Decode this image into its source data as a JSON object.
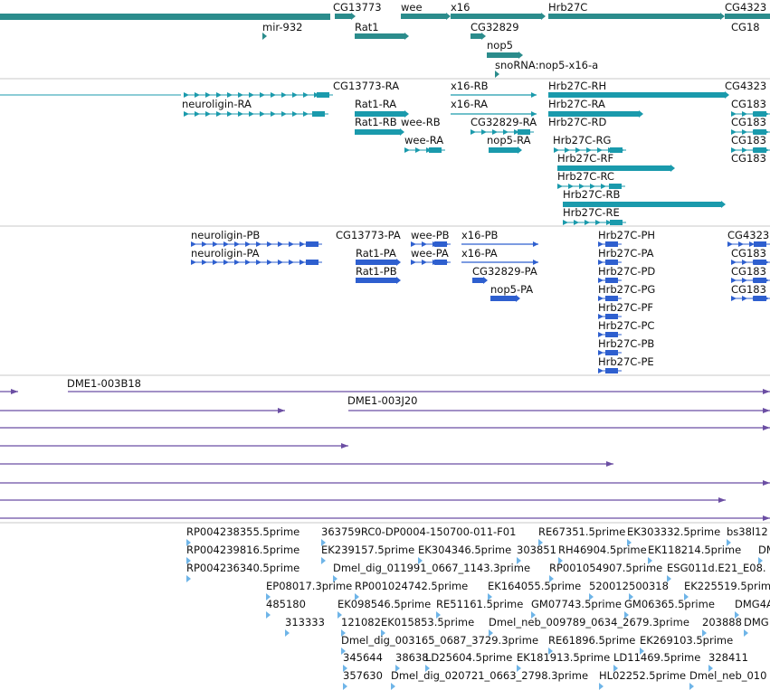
{
  "colors": {
    "gene": "#2b8c8c",
    "transcript": "#1a9aac",
    "protein": "#2e5fcf",
    "clone": "#6b4ea3",
    "est": "#6fb5e8",
    "divider": "#c8c8c8"
  },
  "tracks": {
    "genes": {
      "features": [
        {
          "label": "CG13773"
        },
        {
          "label": "wee"
        },
        {
          "label": "x16"
        },
        {
          "label": "Hrb27C"
        },
        {
          "label": "CG4323"
        },
        {
          "label": "mir-932"
        },
        {
          "label": "Rat1"
        },
        {
          "label": "CG32829"
        },
        {
          "label": "CG18"
        },
        {
          "label": "nop5"
        },
        {
          "label": "snoRNA:nop5-x16-a"
        }
      ]
    },
    "transcripts": {
      "features": [
        {
          "label": "CG13773-RA"
        },
        {
          "label": "x16-RB"
        },
        {
          "label": "Hrb27C-RH"
        },
        {
          "label": "CG4323"
        },
        {
          "label": "neuroligin-RA"
        },
        {
          "label": "Rat1-RA"
        },
        {
          "label": "x16-RA"
        },
        {
          "label": "Hrb27C-RA"
        },
        {
          "label": "CG183"
        },
        {
          "label": "Rat1-RB"
        },
        {
          "label": "wee-RB"
        },
        {
          "label": "CG32829-RA"
        },
        {
          "label": "Hrb27C-RD"
        },
        {
          "label": "CG183"
        },
        {
          "label": "wee-RA"
        },
        {
          "label": "nop5-RA"
        },
        {
          "label": "Hrb27C-RG"
        },
        {
          "label": "CG183"
        },
        {
          "label": "Hrb27C-RF"
        },
        {
          "label": "CG183"
        },
        {
          "label": "Hrb27C-RC"
        },
        {
          "label": "Hrb27C-RB"
        },
        {
          "label": "Hrb27C-RE"
        }
      ]
    },
    "proteins": {
      "features": [
        {
          "label": "neuroligin-PB"
        },
        {
          "label": "CG13773-PA"
        },
        {
          "label": "wee-PB"
        },
        {
          "label": "x16-PB"
        },
        {
          "label": "Hrb27C-PH"
        },
        {
          "label": "CG4323"
        },
        {
          "label": "neuroligin-PA"
        },
        {
          "label": "Rat1-PA"
        },
        {
          "label": "wee-PA"
        },
        {
          "label": "x16-PA"
        },
        {
          "label": "Hrb27C-PA"
        },
        {
          "label": "CG183"
        },
        {
          "label": "Rat1-PB"
        },
        {
          "label": "CG32829-PA"
        },
        {
          "label": "Hrb27C-PD"
        },
        {
          "label": "CG183"
        },
        {
          "label": "nop5-PA"
        },
        {
          "label": "Hrb27C-PG"
        },
        {
          "label": "CG183"
        },
        {
          "label": "Hrb27C-PF"
        },
        {
          "label": "Hrb27C-PC"
        },
        {
          "label": "Hrb27C-PB"
        },
        {
          "label": "Hrb27C-PE"
        }
      ]
    },
    "clones": {
      "features": [
        {
          "label": "DME1-003B18"
        },
        {
          "label": "DME1-003J20"
        }
      ]
    },
    "ests": {
      "features": [
        {
          "label": "RP004238355.5prime"
        },
        {
          "label": "363759RC0-DP0004-150700-011-F01"
        },
        {
          "label": "RE67351.5prime"
        },
        {
          "label": "EK303332.5prime"
        },
        {
          "label": "bs38l12"
        },
        {
          "label": "RP004239816.5prime"
        },
        {
          "label": "EK239157.5prime"
        },
        {
          "label": "EK304346.5prime"
        },
        {
          "label": "303851"
        },
        {
          "label": "RH46904.5prime"
        },
        {
          "label": "EK118214.5prime"
        },
        {
          "label": "DM"
        },
        {
          "label": "RP004236340.5prime"
        },
        {
          "label": "Dmel_dig_011991_0667_1143.3prime"
        },
        {
          "label": "RP001054907.5prime"
        },
        {
          "label": "ESG011d.E21_E08."
        },
        {
          "label": "EP08017.3prime"
        },
        {
          "label": "RP001024742.5prime"
        },
        {
          "label": "EK164055.5prime"
        },
        {
          "label": "520012"
        },
        {
          "label": "500318"
        },
        {
          "label": "EK225519.5prim"
        },
        {
          "label": "485180"
        },
        {
          "label": "EK098546.5prime"
        },
        {
          "label": "RE51161.5prime"
        },
        {
          "label": "GM07743.5prime"
        },
        {
          "label": "GM06365.5prime"
        },
        {
          "label": "DMG4A"
        },
        {
          "label": "313333"
        },
        {
          "label": "121082"
        },
        {
          "label": "EK015853.5prime"
        },
        {
          "label": "Dmel_neb_009789_0634_2679.3prime"
        },
        {
          "label": "203888"
        },
        {
          "label": "DMG"
        },
        {
          "label": "Dmel_dig_003165_0687_3729.3prime"
        },
        {
          "label": "RE61896.5prime"
        },
        {
          "label": "EK269103.5prime"
        },
        {
          "label": "345644"
        },
        {
          "label": "38638"
        },
        {
          "label": "LD25604.5prime"
        },
        {
          "label": "EK181913.5prime"
        },
        {
          "label": "LD11469.5prime"
        },
        {
          "label": "328411"
        },
        {
          "label": "357630"
        },
        {
          "label": "Dmel_dig_020721_0663_2798.3prime"
        },
        {
          "label": "HL02252.5prime"
        },
        {
          "label": "Dmel_neb_010"
        }
      ]
    }
  }
}
